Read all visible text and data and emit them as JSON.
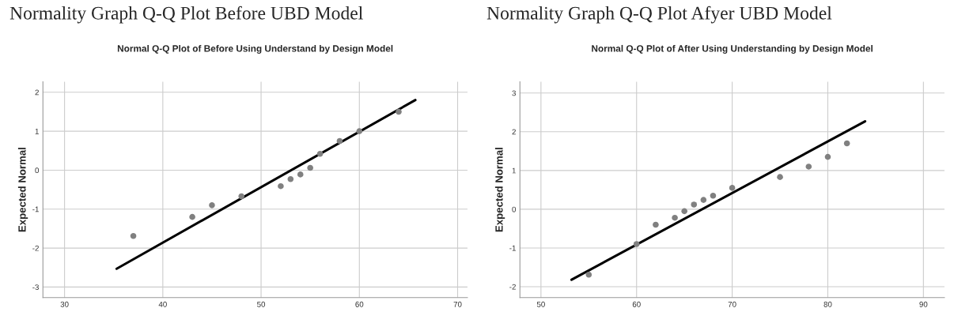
{
  "chart_data": [
    {
      "type": "scatter",
      "title": "Normality Graph Q-Q Plot Before UBD Model",
      "subtitle": "Normal Q-Q Plot of Before Using Understand by Design Model",
      "ylabel": "Expected Normal",
      "series": [
        {
          "marker": "circle",
          "color": "#808080",
          "x": [
            37,
            43,
            45,
            48,
            52,
            53,
            54,
            55,
            56,
            58,
            60,
            64
          ],
          "values": [
            -1.69,
            -1.2,
            -0.9,
            -0.67,
            -0.41,
            -0.23,
            -0.11,
            0.06,
            0.42,
            0.75,
            1.0,
            1.5
          ]
        },
        {
          "type": "line",
          "color": "#000000",
          "x": [
            35.3,
            65.7
          ],
          "values": [
            -2.53,
            1.8
          ]
        }
      ],
      "xlim": [
        27.8,
        71
      ],
      "ylim": [
        -3.27,
        2.27
      ],
      "xticks": [
        30,
        40,
        50,
        60,
        70
      ],
      "yticks": [
        -3,
        -2,
        -1,
        0,
        1,
        2
      ],
      "grid": true
    },
    {
      "type": "scatter",
      "title": "Normality Graph Q-Q Plot Afyer UBD Model",
      "subtitle": "Normal Q-Q Plot of After Using Understanding by Design Model",
      "ylabel": "Expected Normal",
      "series": [
        {
          "marker": "circle",
          "color": "#808080",
          "x": [
            55,
            60,
            62,
            64,
            65,
            66,
            67,
            68,
            70,
            75,
            78,
            80,
            82
          ],
          "values": [
            -1.69,
            -0.9,
            -0.4,
            -0.22,
            -0.05,
            0.12,
            0.24,
            0.35,
            0.55,
            0.83,
            1.1,
            1.35,
            1.7
          ]
        },
        {
          "type": "line",
          "color": "#000000",
          "x": [
            53.2,
            83.9
          ],
          "values": [
            -1.82,
            2.27
          ]
        }
      ],
      "xlim": [
        47.8,
        92.2
      ],
      "ylim": [
        -2.28,
        3.29
      ],
      "xticks": [
        50,
        60,
        70,
        80,
        90
      ],
      "yticks": [
        -2,
        -1,
        0,
        1,
        2,
        3
      ],
      "grid": true
    }
  ]
}
